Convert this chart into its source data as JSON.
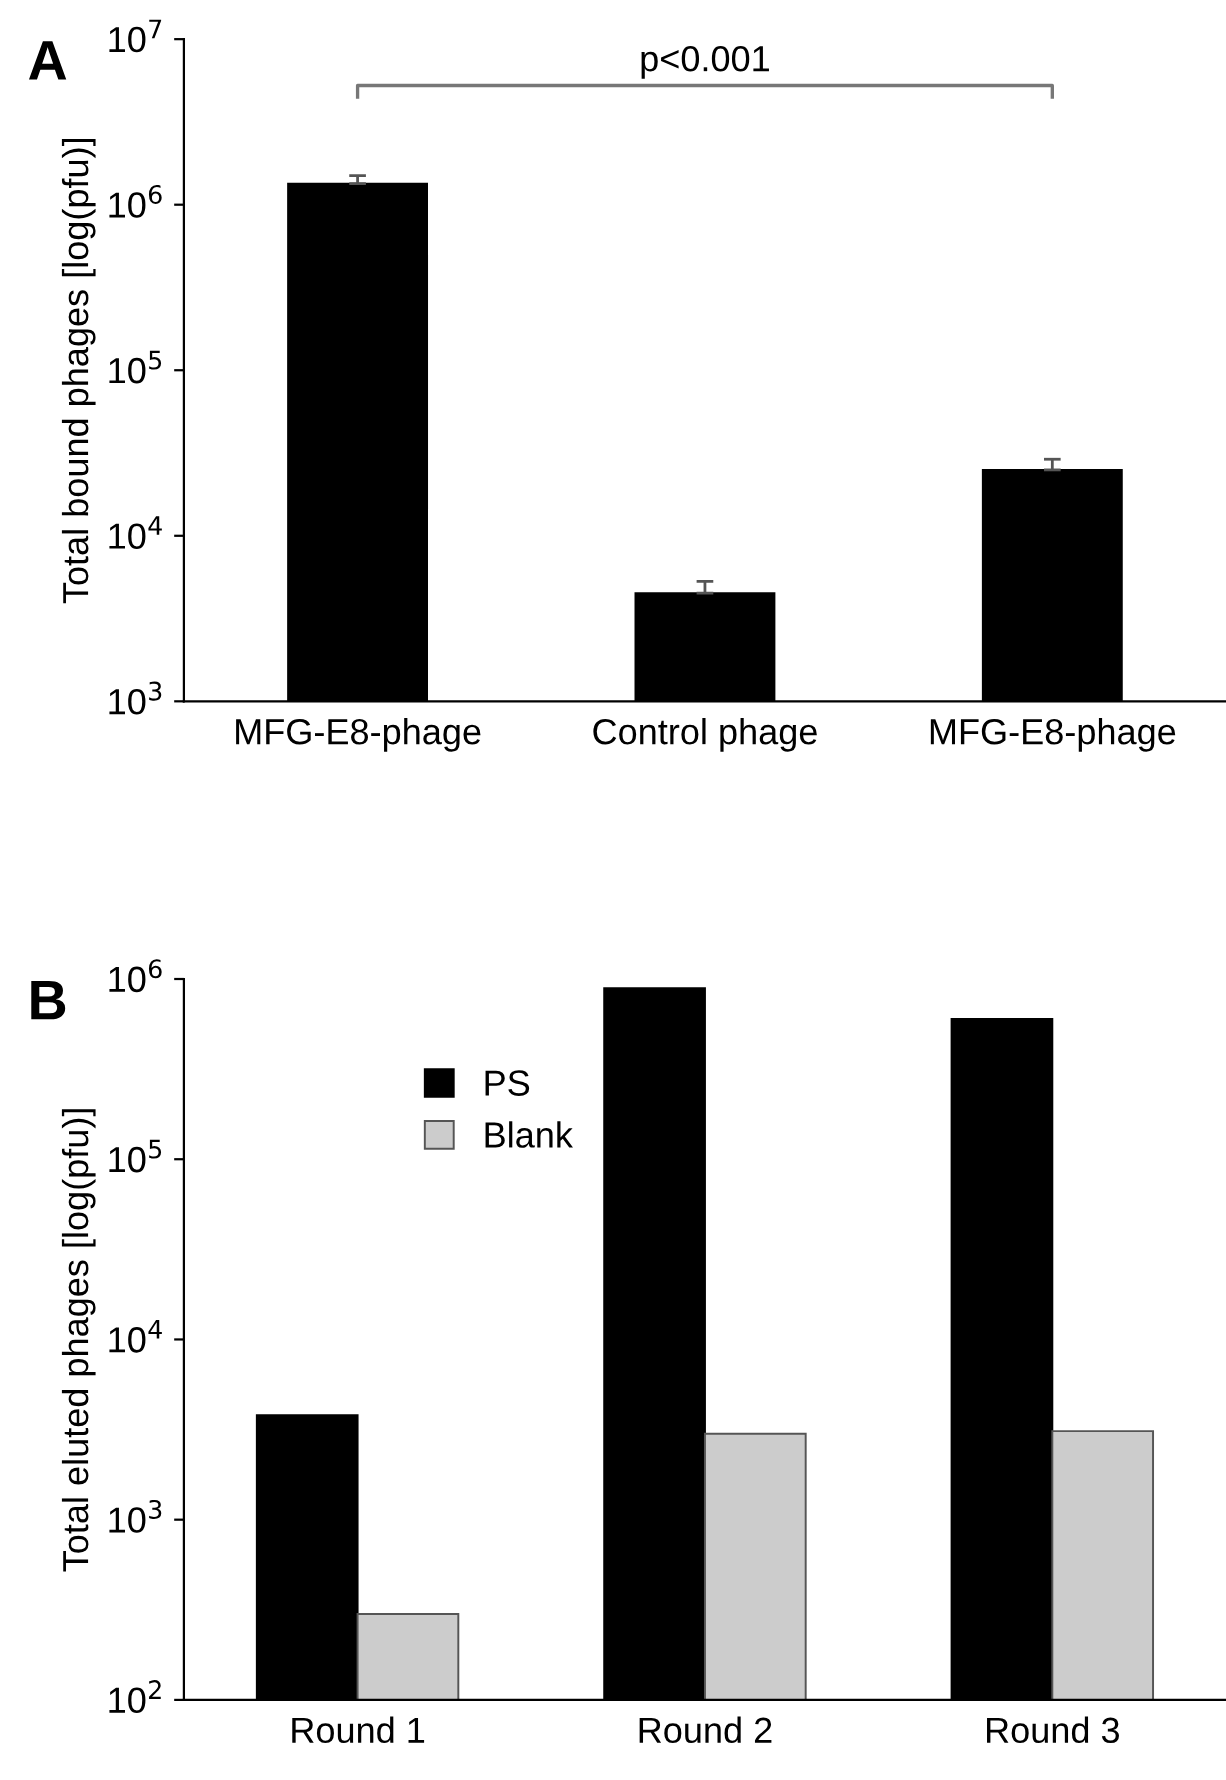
{
  "chart_data": [
    {
      "type": "bar",
      "title": "A",
      "ylabel": "Total bound phages [log(pfu)]",
      "categories": [
        "MFG-E8-phage",
        "Control phage",
        "MFG-E8-phage"
      ],
      "values": [
        1340000,
        4500,
        25000
      ],
      "color": "#000000",
      "errors": [
        [
          1340000,
          1500000
        ],
        [
          4500,
          5300
        ],
        [
          25000,
          29000
        ]
      ],
      "log": "y",
      "ylim": [
        1000,
        10000000
      ],
      "yticks": [
        {
          "value": 1000,
          "label": "10$^{3}$"
        },
        {
          "value": 10000,
          "label": "10$^{4}$"
        },
        {
          "value": 100000,
          "label": "10$^{5}$"
        },
        {
          "value": 1000000,
          "label": "10$^{6}$"
        },
        {
          "value": 10000000,
          "label": "10$^{7}$"
        }
      ],
      "annotations": [
        "p<0.001"
      ],
      "grid": false,
      "legend": false
    },
    {
      "type": "bar",
      "title": "B",
      "ylabel": "Total eluted phages [log(pfu)]",
      "categories": [
        "Round 1",
        "Round 2",
        "Round 3"
      ],
      "series": [
        {
          "name": "PS",
          "color": "#000000",
          "values": [
            3800,
            890000,
            600000
          ]
        },
        {
          "name": "Blank",
          "color": "#cccccc",
          "values": [
            300,
            3000,
            3100
          ]
        }
      ],
      "log": "y",
      "ylim": [
        100,
        1000000
      ],
      "yticks": [
        {
          "value": 100,
          "label": "10$^{2}$"
        },
        {
          "value": 1000,
          "label": "10$^{3}$"
        },
        {
          "value": 10000,
          "label": "10$^{4}$"
        },
        {
          "value": 100000,
          "label": "10$^{5}$"
        },
        {
          "value": 1000000,
          "label": "10$^{6}$"
        }
      ],
      "grid": false,
      "legend": "top left"
    }
  ]
}
